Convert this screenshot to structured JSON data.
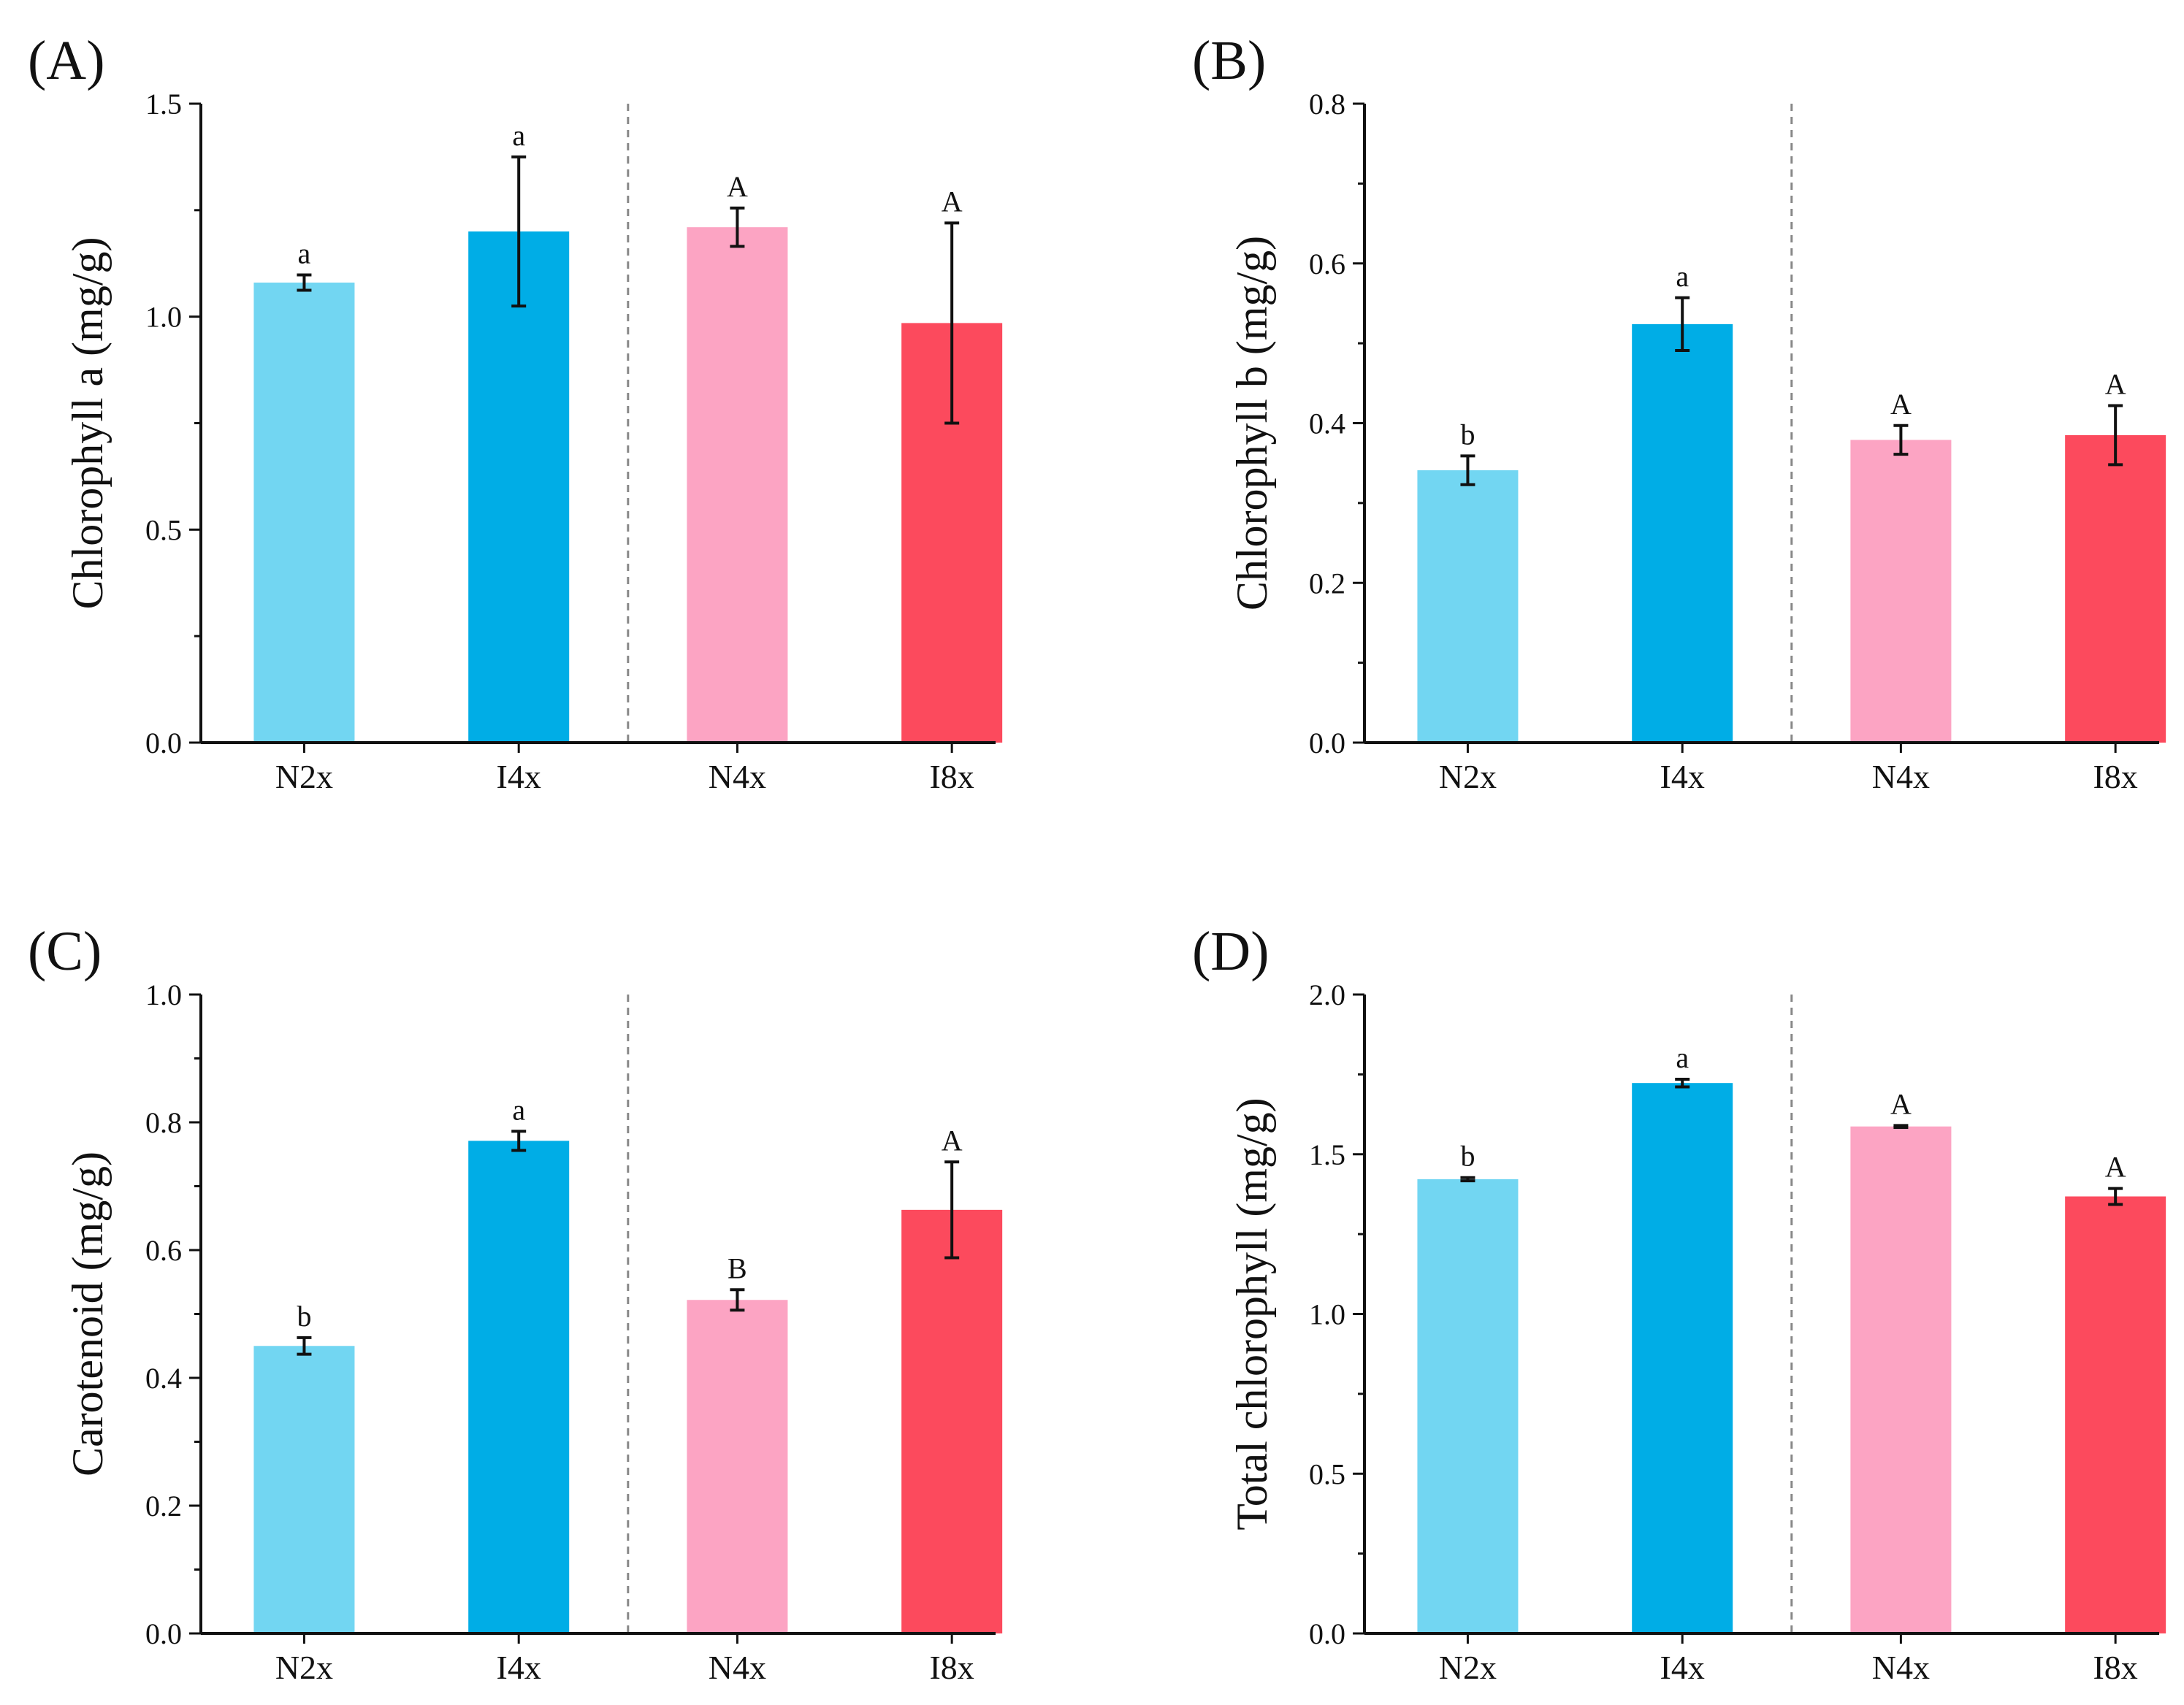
{
  "figure": {
    "colors": {
      "N2x": "#72d6f2",
      "I4x": "#00ade6",
      "N4x": "#fca4c3",
      "I8x": "#fc4a5d",
      "axis": "#111111",
      "divider": "#888888"
    }
  },
  "chart_data": [
    {
      "panel": "(A)",
      "type": "bar",
      "ylabel": "Chlorophyll a (mg/g)",
      "ylim": [
        0,
        1.5
      ],
      "yticks": [
        "0.0",
        "0.5",
        "1.0",
        "1.5"
      ],
      "categories": [
        "N2x",
        "I4x",
        "N4x",
        "I8x"
      ],
      "values": [
        1.08,
        1.2,
        1.21,
        0.985
      ],
      "errors": [
        0.018,
        0.175,
        0.045,
        0.235
      ],
      "significance": [
        "a",
        "a",
        "A",
        "A"
      ],
      "divider_after_category": "I4x"
    },
    {
      "panel": "(B)",
      "type": "bar",
      "ylabel": "Chlorophyll b (mg/g)",
      "ylim": [
        0,
        0.8
      ],
      "yticks": [
        "0.0",
        "0.2",
        "0.4",
        "0.6",
        "0.8"
      ],
      "categories": [
        "N2x",
        "I4x",
        "N4x",
        "I8x"
      ],
      "values": [
        0.341,
        0.524,
        0.379,
        0.385
      ],
      "errors": [
        0.018,
        0.033,
        0.018,
        0.037
      ],
      "significance": [
        "b",
        "a",
        "A",
        "A"
      ],
      "divider_after_category": "I4x"
    },
    {
      "panel": "(C)",
      "type": "bar",
      "ylabel": "Carotenoid (mg/g)",
      "ylim": [
        0,
        1.0
      ],
      "yticks": [
        "0.0",
        "0.2",
        "0.4",
        "0.6",
        "0.8",
        "1.0"
      ],
      "categories": [
        "N2x",
        "I4x",
        "N4x",
        "I8x"
      ],
      "values": [
        0.45,
        0.771,
        0.522,
        0.663
      ],
      "errors": [
        0.013,
        0.015,
        0.016,
        0.075
      ],
      "significance": [
        "b",
        "a",
        "B",
        "A"
      ],
      "divider_after_category": "I4x"
    },
    {
      "panel": "(D)",
      "type": "bar",
      "ylabel": "Total chlorophyll (mg/g)",
      "ylim": [
        0,
        2.0
      ],
      "yticks": [
        "0.0",
        "0.5",
        "1.0",
        "1.5",
        "2.0"
      ],
      "categories": [
        "N2x",
        "I4x",
        "N4x",
        "I8x"
      ],
      "values": [
        1.422,
        1.723,
        1.587,
        1.368
      ],
      "errors": [
        0.005,
        0.012,
        0.003,
        0.025
      ],
      "significance": [
        "b",
        "a",
        "A",
        "A"
      ],
      "divider_after_category": "I4x"
    }
  ]
}
